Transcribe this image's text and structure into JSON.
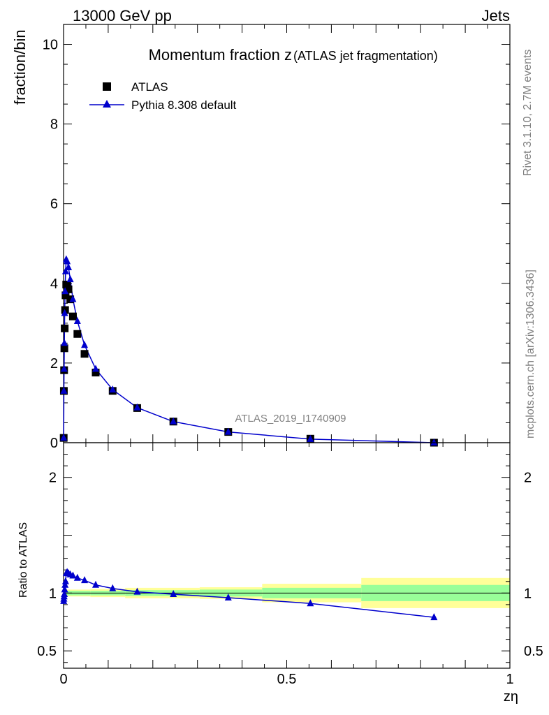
{
  "header": {
    "process": "13000 GeV pp",
    "category": "Jets"
  },
  "side_labels": {
    "rivet": "Rivet 3.1.10,  2.7M events",
    "mcplots": "mcplots.cern.ch [arXiv:1306.3436]"
  },
  "colors": {
    "data": "#000000",
    "mc": "#0000cc",
    "band_inner": "#99ff99",
    "band_outer": "#ffff99",
    "watermark": "#808080"
  },
  "chart_data": [
    {
      "type": "scatter",
      "panel": "main",
      "title": "Momentum fraction z",
      "title_suffix": "(ATLAS jet fragmentation)",
      "ylabel": "fraction/bin",
      "watermark": "ATLAS_2019_I1740909",
      "xlim": [
        0,
        1
      ],
      "ylim": [
        0,
        10.5
      ],
      "yticks": [
        "0",
        "2",
        "4",
        "6",
        "8",
        "10"
      ],
      "legend_position": "top-left",
      "series": [
        {
          "name": "ATLAS",
          "marker": "square",
          "x": [
            0.0003,
            0.0007,
            0.0012,
            0.0018,
            0.0025,
            0.0034,
            0.0045,
            0.006,
            0.008,
            0.011,
            0.015,
            0.021,
            0.031,
            0.047,
            0.072,
            0.11,
            0.165,
            0.246,
            0.369,
            0.553,
            0.83
          ],
          "y": [
            0.12,
            1.3,
            1.82,
            2.37,
            2.87,
            3.33,
            3.7,
            3.97,
            3.95,
            3.85,
            3.6,
            3.17,
            2.73,
            2.23,
            1.76,
            1.3,
            0.87,
            0.53,
            0.27,
            0.1,
            0.0
          ]
        },
        {
          "name": "Pythia 8.308 default",
          "marker": "triangle",
          "x": [
            0.0003,
            0.0007,
            0.0012,
            0.0018,
            0.0025,
            0.0034,
            0.0045,
            0.006,
            0.008,
            0.011,
            0.015,
            0.021,
            0.031,
            0.047,
            0.072,
            0.11,
            0.165,
            0.246,
            0.369,
            0.553,
            0.83
          ],
          "y": [
            0.12,
            1.3,
            1.85,
            2.5,
            3.25,
            3.8,
            4.3,
            4.6,
            4.55,
            4.4,
            4.1,
            3.6,
            3.05,
            2.45,
            1.85,
            1.33,
            0.88,
            0.53,
            0.27,
            0.09,
            0.0
          ]
        }
      ]
    },
    {
      "type": "line",
      "panel": "ratio",
      "ylabel": "Ratio to ATLAS",
      "xlabel": "zη",
      "xlim": [
        0,
        1
      ],
      "ylim": [
        0.35,
        2.3
      ],
      "xticks": [
        "0",
        "0.5",
        "1"
      ],
      "yticks": [
        "0.5",
        "1",
        "2"
      ],
      "bands": [
        {
          "x0": 0,
          "x1": 0.0012,
          "inner": 0.02,
          "outer": 0.04
        },
        {
          "x0": 0.0012,
          "x1": 0.0045,
          "inner": 0.02,
          "outer": 0.035
        },
        {
          "x0": 0.0045,
          "x1": 0.06,
          "inner": 0.02,
          "outer": 0.03
        },
        {
          "x0": 0.06,
          "x1": 0.138,
          "inner": 0.02,
          "outer": 0.035
        },
        {
          "x0": 0.138,
          "x1": 0.305,
          "inner": 0.025,
          "outer": 0.045
        },
        {
          "x0": 0.305,
          "x1": 0.445,
          "inner": 0.03,
          "outer": 0.05
        },
        {
          "x0": 0.445,
          "x1": 0.667,
          "inner": 0.045,
          "outer": 0.08
        },
        {
          "x0": 0.667,
          "x1": 1.0,
          "inner": 0.07,
          "outer": 0.13
        }
      ],
      "series": [
        {
          "name": "Pythia 8.308 default",
          "x": [
            0.0003,
            0.0007,
            0.0012,
            0.0018,
            0.0025,
            0.0034,
            0.0045,
            0.006,
            0.008,
            0.011,
            0.015,
            0.021,
            0.031,
            0.047,
            0.072,
            0.11,
            0.165,
            0.246,
            0.369,
            0.553,
            0.83
          ],
          "y": [
            0.93,
            0.95,
            0.97,
            0.99,
            1.03,
            1.07,
            1.1,
            1.17,
            1.18,
            1.17,
            1.16,
            1.15,
            1.13,
            1.11,
            1.07,
            1.04,
            1.01,
            0.99,
            0.96,
            0.91,
            0.79
          ]
        }
      ]
    }
  ]
}
